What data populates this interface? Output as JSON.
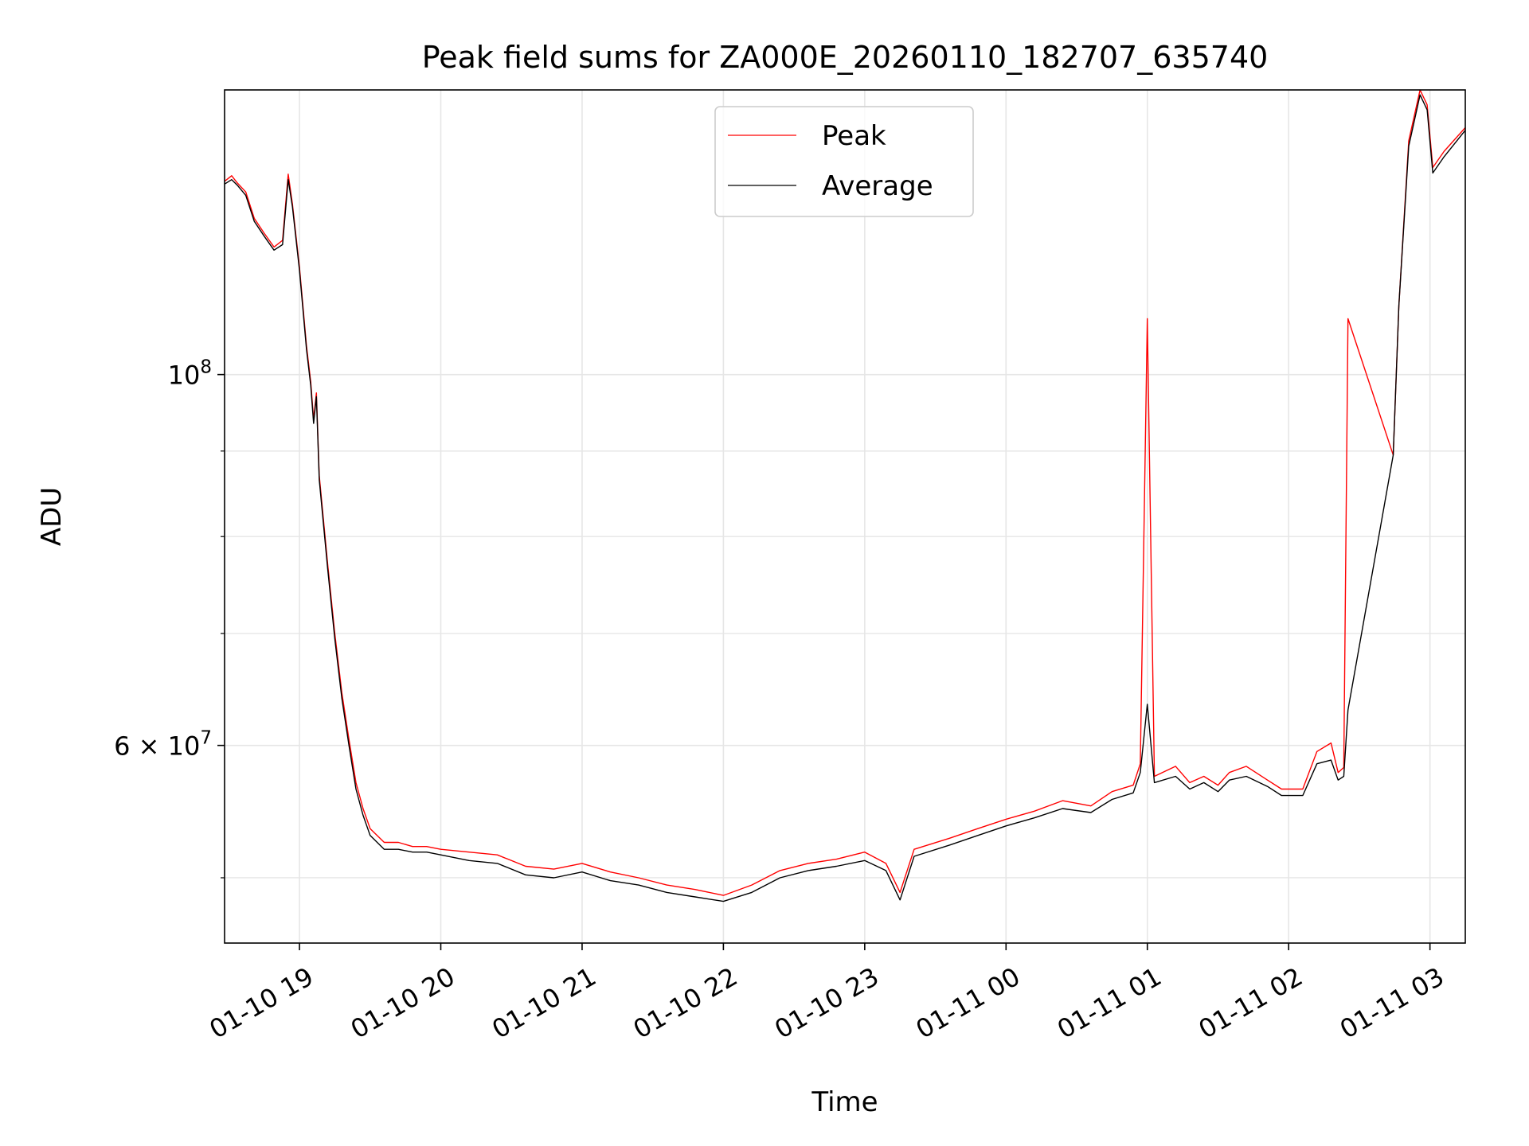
{
  "chart_data": {
    "type": "line",
    "title": "Peak field sums for ZA000E_20260110_182707_635740",
    "xlabel": "Time",
    "ylabel": "ADU",
    "yscale": "log",
    "grid": true,
    "legend_position": "upper center",
    "xlim_hours": [
      18.47,
      27.25
    ],
    "ylim": [
      45700000,
      148000000
    ],
    "x_ticks": [
      {
        "hours": 19,
        "label": "01-10 19"
      },
      {
        "hours": 20,
        "label": "01-10 20"
      },
      {
        "hours": 21,
        "label": "01-10 21"
      },
      {
        "hours": 22,
        "label": "01-10 22"
      },
      {
        "hours": 23,
        "label": "01-10 23"
      },
      {
        "hours": 24,
        "label": "01-11 00"
      },
      {
        "hours": 25,
        "label": "01-11 01"
      },
      {
        "hours": 26,
        "label": "01-11 02"
      },
      {
        "hours": 27,
        "label": "01-11 03"
      }
    ],
    "y_major_ticks": [
      {
        "value": 100000000,
        "mantissa": "",
        "base": "10",
        "exponent": "8"
      },
      {
        "value": 60000000,
        "mantissa": "6 × ",
        "base": "10",
        "exponent": "7"
      }
    ],
    "y_minor_ticks": [
      50000000,
      70000000,
      80000000,
      90000000
    ],
    "series": [
      {
        "name": "Peak",
        "color": "#ff0000",
        "points": [
          [
            18.47,
            130.5
          ],
          [
            18.52,
            131.5
          ],
          [
            18.56,
            130.2
          ],
          [
            18.62,
            128.6
          ],
          [
            18.68,
            124.0
          ],
          [
            18.75,
            121.5
          ],
          [
            18.82,
            119.2
          ],
          [
            18.88,
            120.3
          ],
          [
            18.92,
            131.8
          ],
          [
            18.95,
            126.5
          ],
          [
            19.0,
            116.0
          ],
          [
            19.05,
            104.0
          ],
          [
            19.08,
            99.0
          ],
          [
            19.1,
            94.0
          ],
          [
            19.12,
            97.5
          ],
          [
            19.14,
            87.0
          ],
          [
            19.2,
            77.0
          ],
          [
            19.25,
            70.0
          ],
          [
            19.3,
            64.5
          ],
          [
            19.35,
            60.5
          ],
          [
            19.4,
            57.0
          ],
          [
            19.45,
            55.0
          ],
          [
            19.5,
            53.5
          ],
          [
            19.6,
            52.5
          ],
          [
            19.7,
            52.5
          ],
          [
            19.8,
            52.2
          ],
          [
            19.9,
            52.2
          ],
          [
            20.0,
            52.0
          ],
          [
            20.2,
            51.8
          ],
          [
            20.4,
            51.6
          ],
          [
            20.6,
            50.8
          ],
          [
            20.8,
            50.6
          ],
          [
            21.0,
            51.0
          ],
          [
            21.2,
            50.4
          ],
          [
            21.4,
            50.0
          ],
          [
            21.6,
            49.5
          ],
          [
            21.8,
            49.2
          ],
          [
            22.0,
            48.8
          ],
          [
            22.2,
            49.5
          ],
          [
            22.4,
            50.5
          ],
          [
            22.6,
            51.0
          ],
          [
            22.8,
            51.3
          ],
          [
            23.0,
            51.8
          ],
          [
            23.15,
            51.0
          ],
          [
            23.25,
            49.0
          ],
          [
            23.35,
            52.0
          ],
          [
            23.6,
            52.8
          ],
          [
            23.8,
            53.5
          ],
          [
            24.0,
            54.2
          ],
          [
            24.2,
            54.8
          ],
          [
            24.4,
            55.6
          ],
          [
            24.6,
            55.2
          ],
          [
            24.75,
            56.3
          ],
          [
            24.9,
            56.8
          ],
          [
            24.95,
            58.5
          ],
          [
            25.0,
            108.0
          ],
          [
            25.05,
            57.5
          ],
          [
            25.2,
            58.3
          ],
          [
            25.3,
            57.0
          ],
          [
            25.4,
            57.5
          ],
          [
            25.5,
            56.8
          ],
          [
            25.58,
            57.8
          ],
          [
            25.7,
            58.3
          ],
          [
            25.85,
            57.2
          ],
          [
            25.95,
            56.5
          ],
          [
            26.1,
            56.5
          ],
          [
            26.2,
            59.5
          ],
          [
            26.3,
            60.2
          ],
          [
            26.35,
            57.8
          ],
          [
            26.39,
            58.2
          ],
          [
            26.42,
            108.0
          ],
          [
            26.74,
            89.5
          ],
          [
            26.78,
            110.0
          ],
          [
            26.85,
            138.0
          ],
          [
            26.93,
            148.0
          ],
          [
            26.98,
            145.0
          ],
          [
            27.02,
            133.0
          ],
          [
            27.1,
            136.0
          ],
          [
            27.25,
            140.5
          ]
        ]
      },
      {
        "name": "Average",
        "color": "#000000",
        "points": [
          [
            18.47,
            130.0
          ],
          [
            18.52,
            130.8
          ],
          [
            18.56,
            129.8
          ],
          [
            18.62,
            128.0
          ],
          [
            18.68,
            123.5
          ],
          [
            18.75,
            121.0
          ],
          [
            18.82,
            118.7
          ],
          [
            18.88,
            119.6
          ],
          [
            18.92,
            130.8
          ],
          [
            18.95,
            126.0
          ],
          [
            19.0,
            115.5
          ],
          [
            19.05,
            103.5
          ],
          [
            19.08,
            98.5
          ],
          [
            19.1,
            93.5
          ],
          [
            19.12,
            97.0
          ],
          [
            19.14,
            86.5
          ],
          [
            19.2,
            76.5
          ],
          [
            19.25,
            69.5
          ],
          [
            19.3,
            64.0
          ],
          [
            19.35,
            60.0
          ],
          [
            19.4,
            56.5
          ],
          [
            19.45,
            54.5
          ],
          [
            19.5,
            53.0
          ],
          [
            19.6,
            52.0
          ],
          [
            19.7,
            52.0
          ],
          [
            19.8,
            51.8
          ],
          [
            19.9,
            51.8
          ],
          [
            20.0,
            51.6
          ],
          [
            20.2,
            51.2
          ],
          [
            20.4,
            51.0
          ],
          [
            20.6,
            50.2
          ],
          [
            20.8,
            50.0
          ],
          [
            21.0,
            50.4
          ],
          [
            21.2,
            49.8
          ],
          [
            21.4,
            49.5
          ],
          [
            21.6,
            49.0
          ],
          [
            21.8,
            48.7
          ],
          [
            22.0,
            48.4
          ],
          [
            22.2,
            49.0
          ],
          [
            22.4,
            50.0
          ],
          [
            22.6,
            50.5
          ],
          [
            22.8,
            50.8
          ],
          [
            23.0,
            51.2
          ],
          [
            23.15,
            50.5
          ],
          [
            23.25,
            48.5
          ],
          [
            23.35,
            51.5
          ],
          [
            23.6,
            52.3
          ],
          [
            23.8,
            53.0
          ],
          [
            24.0,
            53.7
          ],
          [
            24.2,
            54.3
          ],
          [
            24.4,
            55.0
          ],
          [
            24.6,
            54.7
          ],
          [
            24.75,
            55.7
          ],
          [
            24.9,
            56.2
          ],
          [
            24.95,
            57.8
          ],
          [
            25.0,
            63.5
          ],
          [
            25.05,
            57.0
          ],
          [
            25.2,
            57.5
          ],
          [
            25.3,
            56.5
          ],
          [
            25.4,
            57.0
          ],
          [
            25.5,
            56.3
          ],
          [
            25.58,
            57.2
          ],
          [
            25.7,
            57.5
          ],
          [
            25.85,
            56.7
          ],
          [
            25.95,
            56.0
          ],
          [
            26.1,
            56.0
          ],
          [
            26.2,
            58.5
          ],
          [
            26.3,
            58.8
          ],
          [
            26.35,
            57.2
          ],
          [
            26.39,
            57.5
          ],
          [
            26.42,
            63.0
          ],
          [
            26.74,
            89.5
          ],
          [
            26.78,
            110.0
          ],
          [
            26.85,
            137.0
          ],
          [
            26.93,
            147.0
          ],
          [
            26.98,
            144.0
          ],
          [
            27.02,
            132.0
          ],
          [
            27.1,
            135.0
          ],
          [
            27.25,
            140.0
          ]
        ]
      }
    ],
    "value_unit_factor": 1000000
  }
}
